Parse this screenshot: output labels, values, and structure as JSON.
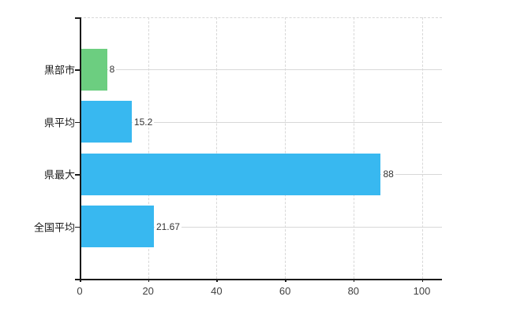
{
  "chart": {
    "background_color": "#ffffff",
    "axis_color": "#1a1a1a",
    "grid_color": "#d8d8d8",
    "category_text_color": "#1a1a1a",
    "value_text_color": "#333333",
    "tick_text_color": "#404040"
  },
  "chart_data": {
    "type": "bar",
    "orientation": "horizontal",
    "title": "",
    "xlabel": "",
    "ylabel": "",
    "categories": [
      "黒部市",
      "県平均",
      "県最大",
      "全国平均"
    ],
    "values": [
      8,
      15.2,
      88,
      21.67
    ],
    "value_labels": [
      "8",
      "15.2",
      "88",
      "21.67"
    ],
    "bar_colors": [
      "#6cce80",
      "#38b8f0",
      "#38b8f0",
      "#38b8f0"
    ],
    "x_tick_labels": [
      "0",
      "20",
      "40",
      "60",
      "80",
      "100"
    ],
    "x_tick_values": [
      0,
      20,
      40,
      60,
      80,
      100
    ],
    "xlim": [
      0,
      106
    ],
    "grid": {
      "horizontal_lines": "solid, one per category center",
      "vertical_lines": "dashed, at each x tick",
      "plot_top_border": "dashed"
    },
    "legend": "none"
  }
}
